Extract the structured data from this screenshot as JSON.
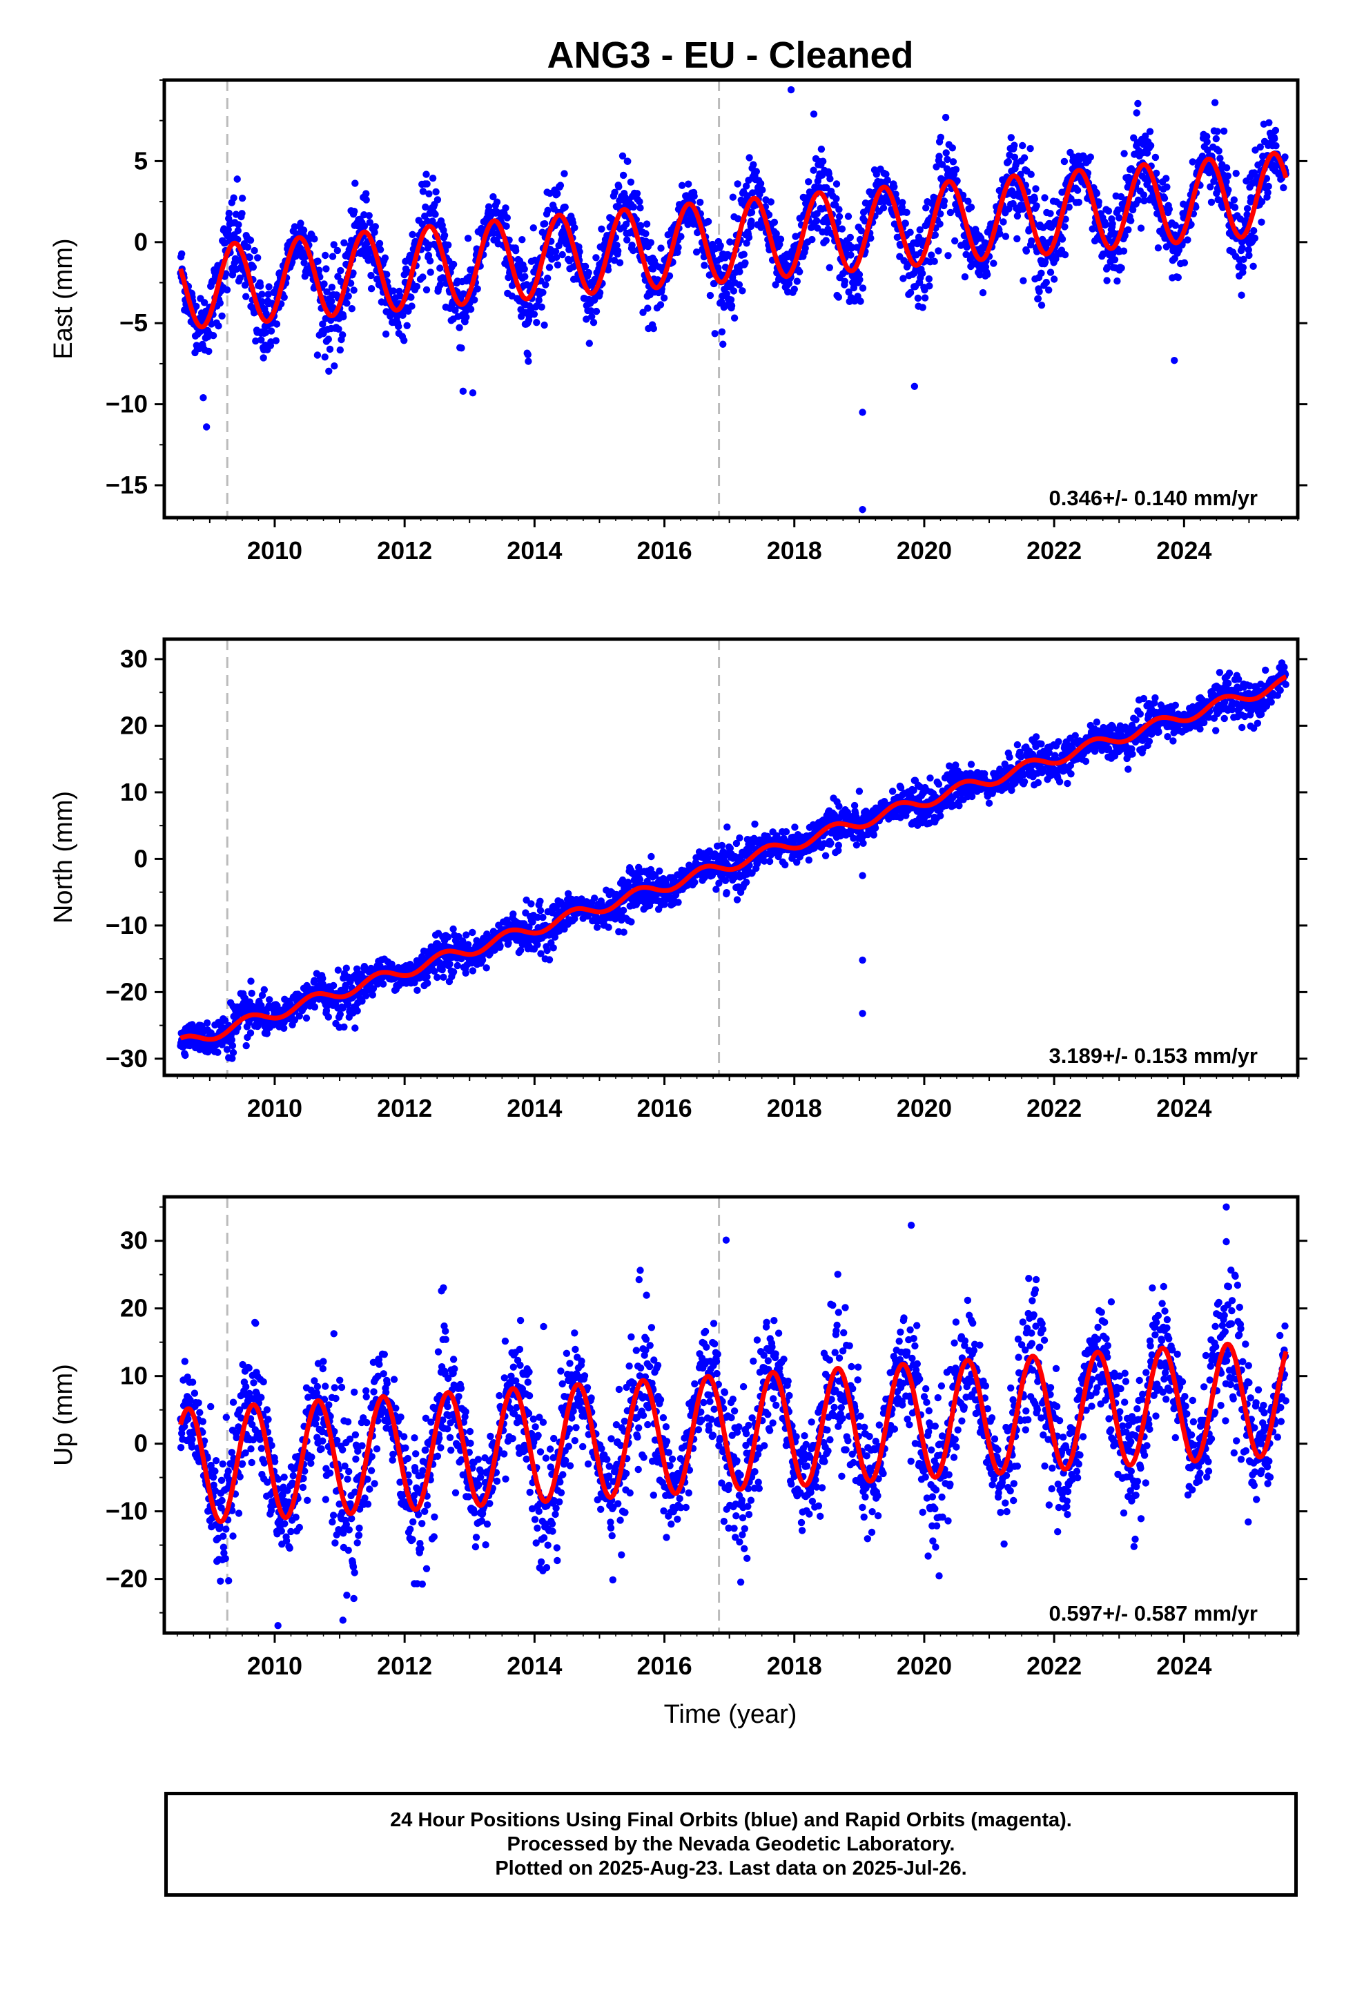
{
  "chart_data": {
    "type": "scatter",
    "title": "ANG3  - EU - Cleaned",
    "xlabel": "Time (year)",
    "x_ticks": [
      2010,
      2012,
      2014,
      2016,
      2018,
      2020,
      2022,
      2024
    ],
    "xlim": [
      2008.3,
      2025.75
    ],
    "time_range": [
      2008.55,
      2025.57
    ],
    "dashed_lines_x": [
      2009.27,
      2016.84
    ],
    "colors": {
      "final_orbits": "#0000ff",
      "rapid_orbits": "#ff00ff",
      "model_fit": "#ff0000",
      "dashed_line": "#bbbbbb",
      "frame": "#000000"
    },
    "footer": [
      "24 Hour Positions Using Final Orbits (blue) and Rapid Orbits (magenta).",
      "Processed by the Nevada Geodetic Laboratory.",
      "Plotted on 2025-Aug-23. Last data on 2025-Jul-26."
    ],
    "panels": [
      {
        "component": "East",
        "ylabel": "East (mm)",
        "ylim": [
          -17,
          10
        ],
        "y_ticks": [
          -15,
          -10,
          -5,
          0,
          5
        ],
        "rate": "0.346+/- 0.140 mm/yr",
        "model": {
          "offset": -2.85,
          "trend": 0.346,
          "t0": 2008.55,
          "annual_amp": 2.5,
          "annual_phase_year": 0.33
        },
        "fit_x": [
          2008.55,
          2009.3,
          2010.3,
          2011.3,
          2012.3,
          2013.3,
          2014.3,
          2015.3,
          2016.3,
          2017.3,
          2018.3,
          2019.3,
          2020.3,
          2021.3,
          2022.3,
          2023.3,
          2024.3,
          2025.3,
          2025.57
        ],
        "scatter_sd": 1.2,
        "outliers": [
          {
            "x": 2008.95,
            "y": -11.4
          },
          {
            "x": 2008.9,
            "y": -9.6
          },
          {
            "x": 2012.9,
            "y": -9.2
          },
          {
            "x": 2013.05,
            "y": -9.3
          },
          {
            "x": 2016.9,
            "y": -6.3
          },
          {
            "x": 2017.95,
            "y": 9.4
          },
          {
            "x": 2018.3,
            "y": 7.9
          },
          {
            "x": 2019.05,
            "y": -10.5
          },
          {
            "x": 2019.05,
            "y": -16.5
          },
          {
            "x": 2019.85,
            "y": -8.9
          },
          {
            "x": 2023.85,
            "y": -7.3
          }
        ]
      },
      {
        "component": "North",
        "ylabel": "North (mm)",
        "ylim": [
          -32.5,
          33
        ],
        "y_ticks": [
          -30,
          -20,
          -10,
          0,
          10,
          20,
          30
        ],
        "rate": "3.189+/- 0.153 mm/yr",
        "model": {
          "offset": -27.8,
          "trend": 3.189,
          "t0": 2008.55,
          "annual_amp": 0.9,
          "annual_phase_year": 0.55
        },
        "scatter_sd": 1.4,
        "outliers": [
          {
            "x": 2019.05,
            "y": -2.5
          },
          {
            "x": 2019.05,
            "y": -15.2
          },
          {
            "x": 2019.05,
            "y": -23.2
          }
        ]
      },
      {
        "component": "Up",
        "ylabel": "Up (mm)",
        "ylim": [
          -28,
          36.5
        ],
        "y_ticks": [
          -20,
          -10,
          0,
          10,
          20,
          30
        ],
        "rate": "0.597+/- 0.587 mm/yr",
        "model": {
          "offset": -3.4,
          "trend": 0.597,
          "t0": 2008.55,
          "annual_amp": 8.5,
          "annual_phase_year": 0.62
        },
        "scatter_sd": 4.5,
        "outliers": [
          {
            "x": 2016.95,
            "y": 30.1
          },
          {
            "x": 2019.8,
            "y": 32.3
          },
          {
            "x": 2024.65,
            "y": 35.0
          },
          {
            "x": 2010.05,
            "y": -26.9
          },
          {
            "x": 2011.05,
            "y": -26.1
          },
          {
            "x": 2012.15,
            "y": -20.7
          }
        ]
      }
    ]
  }
}
